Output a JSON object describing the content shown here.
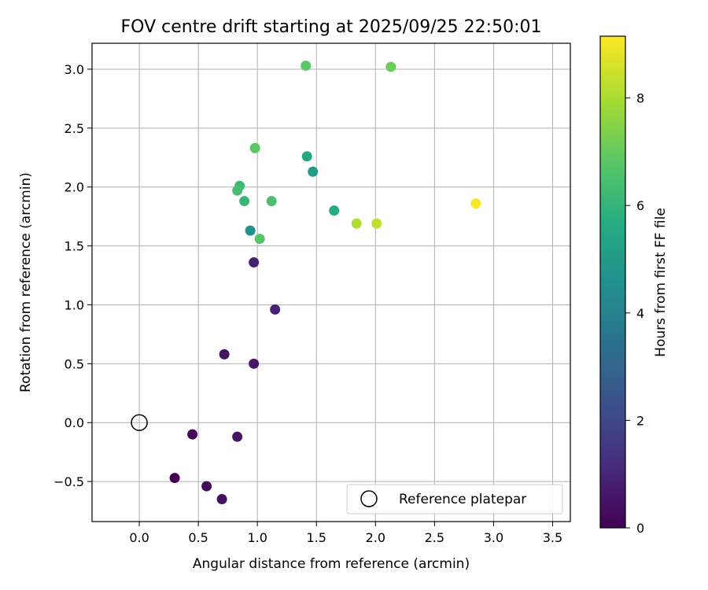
{
  "chart_data": {
    "type": "scatter",
    "title": "FOV centre drift starting at 2025/09/25 22:50:01",
    "xlabel": "Angular distance from reference (arcmin)",
    "ylabel": "Rotation from reference (arcmin)",
    "xlim": [
      -0.4,
      3.65
    ],
    "ylim": [
      -0.84,
      3.22
    ],
    "xticks": [
      "0.0",
      "0.5",
      "1.0",
      "1.5",
      "2.0",
      "2.5",
      "3.0",
      "3.5"
    ],
    "xtick_values": [
      0,
      0.5,
      1.0,
      1.5,
      2.0,
      2.5,
      3.0,
      3.5
    ],
    "yticks": [
      "−0.5",
      "0.0",
      "0.5",
      "1.0",
      "1.5",
      "2.0",
      "2.5",
      "3.0"
    ],
    "ytick_values": [
      -0.5,
      0,
      0.5,
      1.0,
      1.5,
      2.0,
      2.5,
      3.0
    ],
    "grid": true,
    "colormap": "viridis",
    "colorbar": {
      "label": "Hours from first FF file",
      "range": [
        0,
        9.15
      ],
      "ticks": [
        "0",
        "2",
        "4",
        "6",
        "8"
      ],
      "tick_values": [
        0,
        2,
        4,
        6,
        8
      ]
    },
    "reference": {
      "x": 0,
      "y": 0,
      "label": "Reference platepar"
    },
    "legend_position": "lower-right",
    "points": [
      {
        "x": 0.3,
        "y": -0.47,
        "hours": 0.0
      },
      {
        "x": 0.45,
        "y": -0.1,
        "hours": 0.2
      },
      {
        "x": 0.57,
        "y": -0.54,
        "hours": 0.3
      },
      {
        "x": 0.7,
        "y": -0.65,
        "hours": 0.4
      },
      {
        "x": 0.83,
        "y": -0.12,
        "hours": 0.5
      },
      {
        "x": 0.72,
        "y": 0.58,
        "hours": 0.5
      },
      {
        "x": 0.97,
        "y": 0.5,
        "hours": 0.6
      },
      {
        "x": 1.15,
        "y": 0.96,
        "hours": 0.9
      },
      {
        "x": 0.97,
        "y": 1.36,
        "hours": 0.9
      },
      {
        "x": 0.94,
        "y": 1.63,
        "hours": 4.6
      },
      {
        "x": 1.47,
        "y": 2.13,
        "hours": 5.0
      },
      {
        "x": 1.42,
        "y": 2.26,
        "hours": 5.5
      },
      {
        "x": 1.65,
        "y": 1.8,
        "hours": 5.6
      },
      {
        "x": 0.89,
        "y": 1.88,
        "hours": 6.1
      },
      {
        "x": 0.85,
        "y": 2.01,
        "hours": 6.2
      },
      {
        "x": 0.83,
        "y": 1.97,
        "hours": 6.4
      },
      {
        "x": 1.12,
        "y": 1.88,
        "hours": 6.5
      },
      {
        "x": 1.02,
        "y": 1.56,
        "hours": 6.7
      },
      {
        "x": 0.98,
        "y": 2.33,
        "hours": 6.8
      },
      {
        "x": 1.41,
        "y": 3.03,
        "hours": 6.8
      },
      {
        "x": 2.13,
        "y": 3.02,
        "hours": 7.1
      },
      {
        "x": 1.84,
        "y": 1.69,
        "hours": 8.1
      },
      {
        "x": 2.01,
        "y": 1.69,
        "hours": 8.3
      },
      {
        "x": 2.85,
        "y": 1.86,
        "hours": 9.1
      }
    ]
  }
}
